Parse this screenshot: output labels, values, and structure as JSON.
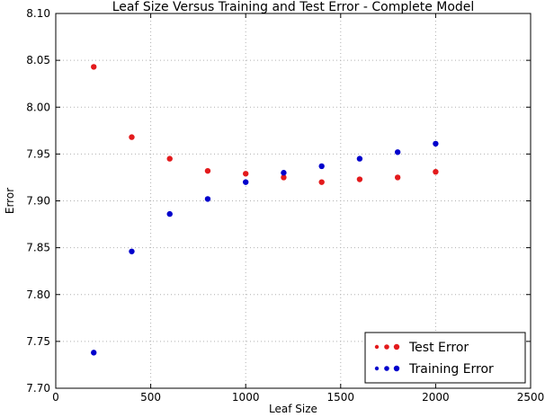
{
  "chart_data": {
    "type": "scatter",
    "title": "Leaf Size Versus Training and Test Error - Complete Model",
    "xlabel": "Leaf Size",
    "ylabel": "Error",
    "xlim": [
      0,
      2500
    ],
    "ylim": [
      7.7,
      8.1
    ],
    "xticks": [
      "0",
      "500",
      "1000",
      "1500",
      "2000",
      "2500"
    ],
    "yticks": [
      "7.70",
      "7.75",
      "7.80",
      "7.85",
      "7.90",
      "7.95",
      "8.00",
      "8.05",
      "8.10"
    ],
    "grid": true,
    "legend_position": "lower-right",
    "x": [
      200,
      400,
      600,
      800,
      1000,
      1200,
      1400,
      1600,
      1800,
      2000
    ],
    "series": [
      {
        "name": "Test Error",
        "color": "#e31a1c",
        "values": [
          8.043,
          7.968,
          7.945,
          7.932,
          7.929,
          7.925,
          7.92,
          7.923,
          7.925,
          7.931
        ]
      },
      {
        "name": "Training Error",
        "color": "#0000cc",
        "values": [
          7.738,
          7.846,
          7.886,
          7.902,
          7.92,
          7.93,
          7.937,
          7.945,
          7.952,
          7.961
        ]
      }
    ]
  }
}
